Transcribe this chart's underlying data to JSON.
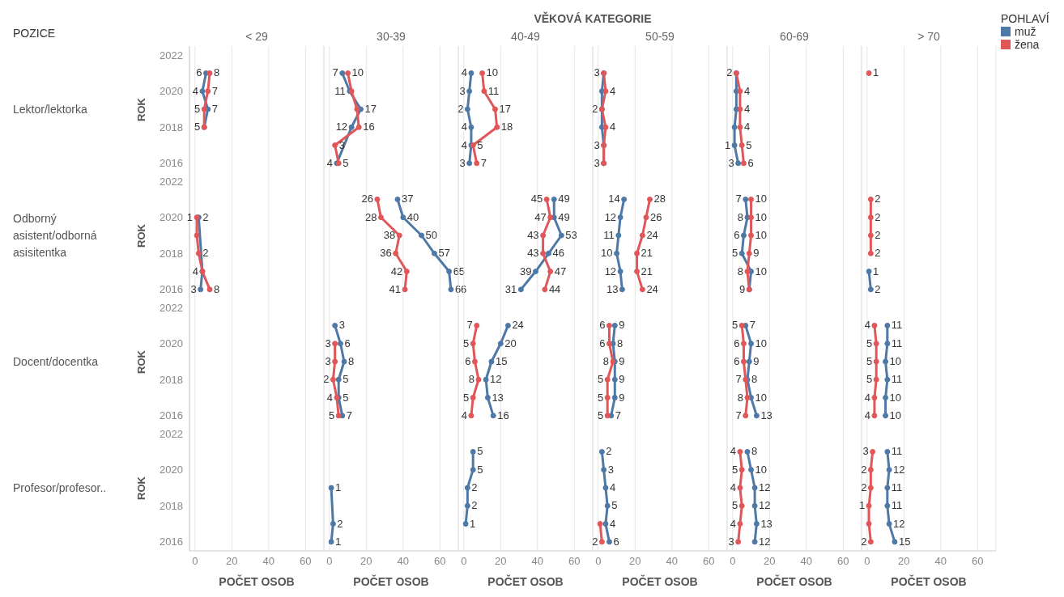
{
  "chart_data": [
    {
      "type": "line",
      "orientation": "horizontal",
      "title": "< 29",
      "ylabel": "ROK",
      "xlabel": "POČET OSOB",
      "annotations": [
        "Lektor/lektorka",
        "Odborný asistent/odborná asisitentka",
        "Docent/docentka",
        "Profesor/profesor..",
        "POZICE",
        "VĚKOVÁ KATEGORIE"
      ],
      "categories": [
        "2022",
        null,
        "2020",
        null,
        "2018",
        null,
        "2016",
        "2022",
        null,
        "2020",
        null,
        "2018",
        null,
        "2016",
        "2022",
        null,
        "2020",
        null,
        "2018",
        null,
        "2016",
        "2022",
        null,
        "2020",
        null,
        "2018",
        null,
        "2016"
      ],
      "xlim": [
        -3,
        70
      ],
      "xticks": [
        0,
        20,
        40,
        60
      ],
      "grid": "x",
      "marker": "circle",
      "data_labels": true,
      "series": [
        {
          "color": "#4e79a7",
          "values": [
            null,
            6,
            4,
            7,
            5,
            null,
            null,
            null,
            null,
            null,
            null,
            null,
            null,
            null,
            null,
            null,
            null,
            null,
            null,
            null,
            null,
            null,
            null,
            null,
            null,
            null,
            null,
            null
          ]
        },
        {
          "color": "#e15759",
          "values": [
            null,
            8,
            7,
            5,
            5,
            null,
            null,
            null,
            null,
            null,
            null,
            null,
            null,
            null,
            null,
            null,
            null,
            null,
            null,
            null,
            null,
            null,
            null,
            null,
            null,
            null,
            null,
            null
          ],
          "value_labels": [
            null,
            "8",
            "7",
            "5",
            null,
            null,
            null,
            null,
            null,
            null,
            null,
            null,
            null,
            null,
            null,
            null,
            null,
            null,
            null,
            null,
            null,
            null,
            null,
            null,
            null,
            null,
            null,
            null
          ]
        },
        {
          "color": "#4e79a7",
          "values": [
            null,
            null,
            null,
            null,
            null,
            null,
            null,
            null,
            null,
            2,
            null,
            null,
            4,
            3,
            null,
            null,
            null,
            null,
            null,
            null,
            null,
            null,
            null,
            null,
            null,
            null,
            null,
            null
          ],
          "value_labels": [
            null,
            null,
            null,
            null,
            null,
            null,
            null,
            null,
            null,
            "2",
            null,
            null,
            "4",
            "3",
            null,
            null,
            null,
            null,
            null,
            null,
            null,
            null,
            null,
            null,
            null,
            null,
            null,
            null
          ]
        },
        {
          "color": "#e15759",
          "values": [
            null,
            null,
            null,
            null,
            null,
            null,
            null,
            null,
            null,
            1,
            1,
            2,
            4,
            8,
            null,
            null,
            null,
            null,
            null,
            null,
            null,
            null,
            null,
            null,
            null,
            null,
            null,
            null
          ],
          "value_labels": [
            null,
            null,
            null,
            null,
            null,
            null,
            null,
            null,
            null,
            "1",
            null,
            "2",
            null,
            "8",
            null,
            null,
            null,
            null,
            null,
            null,
            null,
            null,
            null,
            null,
            null,
            null,
            null,
            null
          ]
        }
      ]
    },
    {
      "type": "line",
      "orientation": "horizontal",
      "title": "30-39",
      "xlabel": "POČET OSOB",
      "categories": [
        "2022",
        null,
        "2020",
        null,
        "2018",
        null,
        "2016",
        "2022",
        null,
        "2020",
        null,
        "2018",
        null,
        "2016",
        "2022",
        null,
        "2020",
        null,
        "2018",
        null,
        "2016",
        "2022",
        null,
        "2020",
        null,
        "2018",
        null,
        "2016"
      ],
      "xlim": [
        -3,
        70
      ],
      "xticks": [
        0,
        20,
        40,
        60
      ],
      "grid": "x",
      "marker": "circle",
      "data_labels": true,
      "tick_labels": "x",
      "series": [
        {
          "color": "#4e79a7",
          "values": [
            null,
            7,
            11,
            17,
            12,
            null,
            4,
            null,
            null,
            null,
            null,
            null,
            null,
            null,
            null,
            null,
            null,
            null,
            null,
            null,
            null,
            null,
            null,
            null,
            null,
            null,
            null,
            null
          ],
          "value_labels": [
            null,
            "7",
            "11",
            "17",
            "12",
            null,
            "4",
            null,
            null,
            null,
            null,
            null,
            null,
            null,
            null,
            null,
            null,
            null,
            null,
            null,
            null,
            null,
            null,
            null,
            null,
            null,
            null,
            null
          ]
        },
        {
          "color": "#e15759",
          "values": [
            null,
            10,
            12,
            15,
            16,
            3,
            5,
            null,
            null,
            null,
            null,
            null,
            null,
            null,
            null,
            null,
            null,
            null,
            null,
            null,
            null,
            null,
            null,
            null,
            null,
            null,
            null,
            null
          ],
          "value_labels": [
            null,
            "10",
            null,
            null,
            "16",
            "3",
            "5",
            null,
            null,
            null,
            null,
            null,
            null,
            null,
            null,
            null,
            null,
            null,
            null,
            null,
            null,
            null,
            null,
            null,
            null,
            null,
            null,
            null
          ]
        },
        {
          "color": "#4e79a7",
          "values": [
            null,
            null,
            null,
            null,
            null,
            null,
            null,
            null,
            37,
            40,
            50,
            57,
            65,
            66,
            null,
            null,
            null,
            null,
            null,
            null,
            null,
            null,
            null,
            null,
            null,
            null,
            null,
            null
          ]
        },
        {
          "color": "#e15759",
          "values": [
            null,
            null,
            null,
            null,
            null,
            null,
            null,
            null,
            26,
            28,
            38,
            36,
            42,
            41,
            null,
            null,
            null,
            null,
            null,
            null,
            null,
            null,
            null,
            null,
            null,
            null,
            null,
            null
          ]
        },
        {
          "color": "#4e79a7",
          "values": [
            null,
            null,
            null,
            null,
            null,
            null,
            null,
            null,
            null,
            null,
            null,
            null,
            null,
            null,
            null,
            3,
            6,
            8,
            5,
            5,
            7,
            null,
            null,
            null,
            null,
            null,
            null,
            null
          ]
        },
        {
          "color": "#e15759",
          "values": [
            null,
            null,
            null,
            null,
            null,
            null,
            null,
            null,
            null,
            null,
            null,
            null,
            null,
            null,
            null,
            null,
            3,
            3,
            2,
            4,
            5,
            null,
            null,
            null,
            null,
            null,
            null,
            null
          ]
        },
        {
          "color": "#4e79a7",
          "values": [
            null,
            null,
            null,
            null,
            null,
            null,
            null,
            null,
            null,
            null,
            null,
            null,
            null,
            null,
            null,
            null,
            null,
            null,
            null,
            null,
            null,
            null,
            null,
            null,
            1,
            null,
            2,
            1
          ]
        }
      ]
    },
    {
      "type": "line",
      "orientation": "horizontal",
      "title": "40-49",
      "xlabel": "POČET OSOB",
      "categories": [
        "2022",
        null,
        "2020",
        null,
        "2018",
        null,
        "2016",
        "2022",
        null,
        "2020",
        null,
        "2018",
        null,
        "2016",
        "2022",
        null,
        "2020",
        null,
        "2018",
        null,
        "2016",
        "2022",
        null,
        "2020",
        null,
        "2018",
        null,
        "2016"
      ],
      "xlim": [
        -3,
        70
      ],
      "xticks": [
        0,
        20,
        40,
        60
      ],
      "grid": "x",
      "marker": "circle",
      "data_labels": true,
      "tick_labels": "x",
      "series": [
        {
          "color": "#4e79a7",
          "values": [
            null,
            4,
            3,
            2,
            4,
            4,
            3,
            null,
            null,
            null,
            null,
            null,
            null,
            null,
            null,
            null,
            null,
            null,
            null,
            null,
            null,
            null,
            null,
            null,
            null,
            null,
            null,
            null
          ]
        },
        {
          "color": "#e15759",
          "values": [
            null,
            10,
            11,
            17,
            18,
            5,
            7,
            null,
            null,
            null,
            null,
            null,
            null,
            null,
            null,
            null,
            null,
            null,
            null,
            null,
            null,
            null,
            null,
            null,
            null,
            null,
            null,
            null
          ]
        },
        {
          "color": "#4e79a7",
          "values": [
            null,
            null,
            null,
            null,
            null,
            null,
            null,
            null,
            49,
            49,
            53,
            46,
            39,
            31,
            null,
            null,
            null,
            null,
            null,
            null,
            null,
            null,
            null,
            null,
            null,
            null,
            null,
            null
          ]
        },
        {
          "color": "#e15759",
          "values": [
            null,
            null,
            null,
            null,
            null,
            null,
            null,
            null,
            45,
            47,
            43,
            43,
            47,
            44,
            null,
            null,
            null,
            null,
            null,
            null,
            null,
            null,
            null,
            null,
            null,
            null,
            null,
            null
          ]
        },
        {
          "color": "#4e79a7",
          "values": [
            null,
            null,
            null,
            null,
            null,
            null,
            null,
            null,
            null,
            null,
            null,
            null,
            null,
            null,
            null,
            24,
            20,
            15,
            12,
            13,
            16,
            null,
            null,
            null,
            null,
            null,
            null,
            null
          ]
        },
        {
          "color": "#e15759",
          "values": [
            null,
            null,
            null,
            null,
            null,
            null,
            null,
            null,
            null,
            null,
            null,
            null,
            null,
            null,
            null,
            7,
            5,
            6,
            8,
            5,
            4,
            null,
            null,
            null,
            null,
            null,
            null,
            null
          ]
        },
        {
          "color": "#4e79a7",
          "values": [
            null,
            null,
            null,
            null,
            null,
            null,
            null,
            null,
            null,
            null,
            null,
            null,
            null,
            null,
            null,
            null,
            null,
            null,
            null,
            null,
            null,
            null,
            5,
            5,
            2,
            2,
            1,
            null
          ]
        }
      ]
    },
    {
      "type": "line",
      "orientation": "horizontal",
      "title": "50-59",
      "xlabel": "POČET OSOB",
      "categories": [
        "2022",
        null,
        "2020",
        null,
        "2018",
        null,
        "2016",
        "2022",
        null,
        "2020",
        null,
        "2018",
        null,
        "2016",
        "2022",
        null,
        "2020",
        null,
        "2018",
        null,
        "2016",
        "2022",
        null,
        "2020",
        null,
        "2018",
        null,
        "2016"
      ],
      "xlim": [
        -3,
        70
      ],
      "xticks": [
        0,
        20,
        40,
        60
      ],
      "grid": "x",
      "marker": "circle",
      "data_labels": true,
      "tick_labels": "x",
      "series": [
        {
          "color": "#4e79a7",
          "values": [
            null,
            3,
            2,
            2,
            2,
            3,
            3,
            null,
            null,
            null,
            null,
            null,
            null,
            null,
            null,
            null,
            null,
            null,
            null,
            null,
            null,
            null,
            null,
            null,
            null,
            null,
            null,
            null
          ],
          "value_labels": [
            null,
            "3",
            null,
            "2",
            null,
            "3",
            "3",
            null,
            null,
            null,
            null,
            null,
            null,
            null,
            null,
            null,
            null,
            null,
            null,
            null,
            null,
            null,
            null,
            null,
            null,
            null,
            null,
            null
          ]
        },
        {
          "color": "#e15759",
          "values": [
            null,
            3,
            4,
            2,
            4,
            3,
            3,
            null,
            null,
            null,
            null,
            null,
            null,
            null,
            null,
            null,
            null,
            null,
            null,
            null,
            null,
            null,
            null,
            null,
            null,
            null,
            null,
            null
          ],
          "value_labels": [
            null,
            null,
            "4",
            null,
            "4",
            null,
            null,
            null,
            null,
            null,
            null,
            null,
            null,
            null,
            null,
            null,
            null,
            null,
            null,
            null,
            null,
            null,
            null,
            null,
            null,
            null,
            null,
            null
          ]
        },
        {
          "color": "#4e79a7",
          "values": [
            null,
            null,
            null,
            null,
            null,
            null,
            null,
            null,
            14,
            12,
            11,
            10,
            12,
            13,
            null,
            null,
            null,
            null,
            null,
            null,
            null,
            null,
            null,
            null,
            null,
            null,
            null,
            null
          ]
        },
        {
          "color": "#e15759",
          "values": [
            null,
            null,
            null,
            null,
            null,
            null,
            null,
            null,
            28,
            26,
            24,
            21,
            21,
            24,
            null,
            null,
            null,
            null,
            null,
            null,
            null,
            null,
            null,
            null,
            null,
            null,
            null,
            null
          ]
        },
        {
          "color": "#4e79a7",
          "values": [
            null,
            null,
            null,
            null,
            null,
            null,
            null,
            null,
            null,
            null,
            null,
            null,
            null,
            null,
            null,
            9,
            8,
            9,
            9,
            9,
            7,
            null,
            null,
            null,
            null,
            null,
            null,
            null
          ]
        },
        {
          "color": "#e15759",
          "values": [
            null,
            null,
            null,
            null,
            null,
            null,
            null,
            null,
            null,
            null,
            null,
            null,
            null,
            null,
            null,
            6,
            6,
            8,
            5,
            5,
            5,
            null,
            null,
            null,
            null,
            null,
            null,
            null
          ]
        },
        {
          "color": "#4e79a7",
          "values": [
            null,
            null,
            null,
            null,
            null,
            null,
            null,
            null,
            null,
            null,
            null,
            null,
            null,
            null,
            null,
            null,
            null,
            null,
            null,
            null,
            null,
            null,
            2,
            3,
            4,
            5,
            4,
            6
          ]
        },
        {
          "color": "#e15759",
          "values": [
            null,
            null,
            null,
            null,
            null,
            null,
            null,
            null,
            null,
            null,
            null,
            null,
            null,
            null,
            null,
            null,
            null,
            null,
            null,
            null,
            null,
            null,
            null,
            null,
            null,
            null,
            1,
            2
          ],
          "value_labels": [
            null,
            null,
            null,
            null,
            null,
            null,
            null,
            null,
            null,
            null,
            null,
            null,
            null,
            null,
            null,
            null,
            null,
            null,
            null,
            null,
            null,
            null,
            null,
            null,
            null,
            null,
            null,
            "2"
          ]
        }
      ]
    },
    {
      "type": "line",
      "orientation": "horizontal",
      "title": "60-69",
      "xlabel": "POČET OSOB",
      "categories": [
        "2022",
        null,
        "2020",
        null,
        "2018",
        null,
        "2016",
        "2022",
        null,
        "2020",
        null,
        "2018",
        null,
        "2016",
        "2022",
        null,
        "2020",
        null,
        "2018",
        null,
        "2016",
        "2022",
        null,
        "2020",
        null,
        "2018",
        null,
        "2016"
      ],
      "xlim": [
        -3,
        70
      ],
      "xticks": [
        0,
        20,
        40,
        60
      ],
      "grid": "x",
      "marker": "circle",
      "data_labels": true,
      "tick_labels": "x",
      "series": [
        {
          "color": "#4e79a7",
          "values": [
            null,
            2,
            2,
            2,
            1,
            1,
            3,
            null,
            null,
            null,
            null,
            null,
            null,
            null,
            null,
            null,
            null,
            null,
            null,
            null,
            null,
            null,
            null,
            null,
            null,
            null,
            null,
            null
          ],
          "value_labels": [
            null,
            "2",
            null,
            null,
            null,
            "1",
            "3",
            null,
            null,
            null,
            null,
            null,
            null,
            null,
            null,
            null,
            null,
            null,
            null,
            null,
            null,
            null,
            null,
            null,
            null,
            null,
            null,
            null
          ]
        },
        {
          "color": "#e15759",
          "values": [
            null,
            2,
            4,
            4,
            4,
            5,
            6,
            null,
            null,
            null,
            null,
            null,
            null,
            null,
            null,
            null,
            null,
            null,
            null,
            null,
            null,
            null,
            null,
            null,
            null,
            null,
            null,
            null
          ],
          "value_labels": [
            null,
            null,
            "4",
            "4",
            "4",
            "5",
            "6",
            null,
            null,
            null,
            null,
            null,
            null,
            null,
            null,
            null,
            null,
            null,
            null,
            null,
            null,
            null,
            null,
            null,
            null,
            null,
            null,
            null
          ]
        },
        {
          "color": "#4e79a7",
          "values": [
            null,
            null,
            null,
            null,
            null,
            null,
            null,
            null,
            7,
            8,
            6,
            5,
            10,
            9,
            null,
            null,
            null,
            null,
            null,
            null,
            null,
            null,
            null,
            null,
            null,
            null,
            null,
            null
          ]
        },
        {
          "color": "#e15759",
          "values": [
            null,
            null,
            null,
            null,
            null,
            null,
            null,
            null,
            10,
            10,
            10,
            9,
            8,
            9,
            null,
            null,
            null,
            null,
            null,
            null,
            null,
            null,
            null,
            null,
            null,
            null,
            null,
            null
          ],
          "value_labels": [
            null,
            null,
            null,
            null,
            null,
            null,
            null,
            null,
            "10",
            "10",
            "10",
            "9",
            "8",
            null,
            null,
            null,
            null,
            null,
            null,
            null,
            null,
            null,
            null,
            null,
            null,
            null,
            null,
            null
          ]
        },
        {
          "color": "#4e79a7",
          "values": [
            null,
            null,
            null,
            null,
            null,
            null,
            null,
            null,
            null,
            null,
            null,
            null,
            null,
            null,
            null,
            7,
            10,
            9,
            8,
            10,
            13,
            null,
            null,
            null,
            null,
            null,
            null,
            null
          ]
        },
        {
          "color": "#e15759",
          "values": [
            null,
            null,
            null,
            null,
            null,
            null,
            null,
            null,
            null,
            null,
            null,
            null,
            null,
            null,
            null,
            5,
            6,
            6,
            7,
            8,
            7,
            null,
            null,
            null,
            null,
            null,
            null,
            null
          ]
        },
        {
          "color": "#4e79a7",
          "values": [
            null,
            null,
            null,
            null,
            null,
            null,
            null,
            null,
            null,
            null,
            null,
            null,
            null,
            null,
            null,
            null,
            null,
            null,
            null,
            null,
            null,
            null,
            8,
            10,
            12,
            12,
            13,
            12
          ]
        },
        {
          "color": "#e15759",
          "values": [
            null,
            null,
            null,
            null,
            null,
            null,
            null,
            null,
            null,
            null,
            null,
            null,
            null,
            null,
            null,
            null,
            null,
            null,
            null,
            null,
            null,
            null,
            4,
            5,
            4,
            5,
            4,
            3
          ]
        }
      ]
    },
    {
      "type": "line",
      "orientation": "horizontal",
      "title": "> 70",
      "xlabel": "POČET OSOB",
      "legend": "right",
      "legend_title": "POHLAVÍ",
      "categories": [
        "2022",
        null,
        "2020",
        null,
        "2018",
        null,
        "2016",
        "2022",
        null,
        "2020",
        null,
        "2018",
        null,
        "2016",
        "2022",
        null,
        "2020",
        null,
        "2018",
        null,
        "2016",
        "2022",
        null,
        "2020",
        null,
        "2018",
        null,
        "2016"
      ],
      "xlim": [
        -3,
        70
      ],
      "xticks": [
        0,
        20,
        40,
        60
      ],
      "grid": "x",
      "marker": "circle",
      "data_labels": true,
      "tick_labels": "x",
      "series": [
        {
          "name": "muž",
          "color": "#4e79a7",
          "values": [
            null,
            null,
            null,
            null,
            null,
            null,
            null,
            null,
            null,
            null,
            null,
            null,
            1,
            2,
            null,
            null,
            null,
            null,
            null,
            null,
            null,
            null,
            null,
            null,
            null,
            null,
            null,
            null
          ],
          "value_labels": [
            null,
            null,
            null,
            null,
            null,
            null,
            null,
            null,
            null,
            null,
            null,
            null,
            "1",
            "2",
            null,
            null,
            null,
            null,
            null,
            null,
            null,
            null,
            null,
            null,
            null,
            null,
            null,
            null
          ]
        },
        {
          "name": "žena",
          "color": "#e15759",
          "values": [
            null,
            1,
            null,
            null,
            null,
            null,
            null,
            null,
            null,
            null,
            null,
            null,
            null,
            null,
            null,
            null,
            null,
            null,
            null,
            null,
            null,
            null,
            null,
            null,
            null,
            null,
            null,
            null
          ]
        },
        {
          "color": "#e15759",
          "values": [
            null,
            null,
            null,
            null,
            null,
            null,
            null,
            null,
            2,
            2,
            2,
            2,
            null,
            null,
            null,
            null,
            null,
            null,
            null,
            null,
            null,
            null,
            null,
            null,
            null,
            null,
            null,
            null
          ]
        },
        {
          "color": "#4e79a7",
          "values": [
            null,
            null,
            null,
            null,
            null,
            null,
            null,
            null,
            null,
            null,
            null,
            null,
            null,
            null,
            null,
            11,
            11,
            10,
            11,
            10,
            10,
            null,
            null,
            null,
            null,
            null,
            null,
            null
          ]
        },
        {
          "color": "#e15759",
          "values": [
            null,
            null,
            null,
            null,
            null,
            null,
            null,
            null,
            null,
            null,
            null,
            null,
            null,
            null,
            null,
            4,
            5,
            5,
            5,
            4,
            4,
            null,
            null,
            null,
            null,
            null,
            null,
            null
          ]
        },
        {
          "color": "#4e79a7",
          "values": [
            null,
            null,
            null,
            null,
            null,
            null,
            null,
            null,
            null,
            null,
            null,
            null,
            null,
            null,
            null,
            null,
            null,
            null,
            null,
            null,
            null,
            null,
            11,
            12,
            11,
            11,
            12,
            15
          ]
        },
        {
          "color": "#e15759",
          "values": [
            null,
            null,
            null,
            null,
            null,
            null,
            null,
            null,
            null,
            null,
            null,
            null,
            null,
            null,
            null,
            null,
            null,
            null,
            null,
            null,
            null,
            null,
            3,
            2,
            2,
            1,
            1,
            2
          ],
          "value_labels": [
            null,
            null,
            null,
            null,
            null,
            null,
            null,
            null,
            null,
            null,
            null,
            null,
            null,
            null,
            null,
            null,
            null,
            null,
            null,
            null,
            null,
            null,
            "3",
            "2",
            "2",
            "1",
            null,
            "2"
          ]
        }
      ]
    }
  ]
}
